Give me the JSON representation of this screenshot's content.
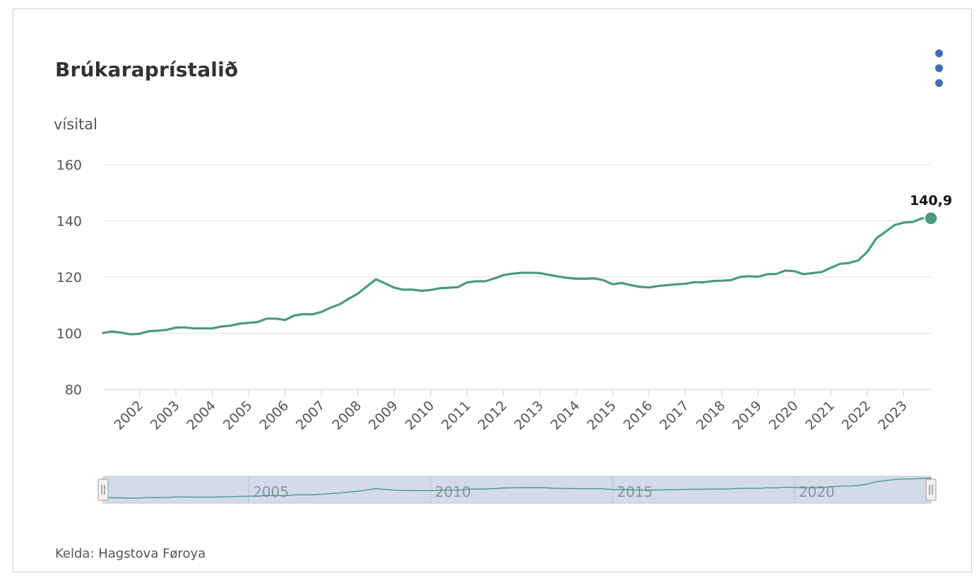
{
  "title": "Brúkaraprístalið",
  "source": "Kelda: Hagstova Føroya",
  "menu_icon": "kebab-menu-icon",
  "colors": {
    "line": "#4a9a82",
    "menu": "#3f6fae",
    "navigator_fill": "#d3dbea",
    "grid": "#e0e0e0"
  },
  "chart_data": {
    "type": "line",
    "ylabel": "vísital",
    "ylim": [
      80,
      160
    ],
    "yticks": [
      "80",
      "100",
      "120",
      "140",
      "160"
    ],
    "xlim": [
      2001.0,
      2023.75
    ],
    "xticks": [
      "2002",
      "2003",
      "2004",
      "2005",
      "2006",
      "2007",
      "2008",
      "2009",
      "2010",
      "2011",
      "2012",
      "2013",
      "2014",
      "2015",
      "2016",
      "2017",
      "2018",
      "2019",
      "2020",
      "2021",
      "2022",
      "2023"
    ],
    "last_value_label": "140,9",
    "grid": true,
    "navigator": {
      "labels": [
        "2005",
        "2010",
        "2015",
        "2020"
      ]
    },
    "series": [
      {
        "x": [
          2001.0,
          2001.25,
          2001.5,
          2001.75,
          2002.0,
          2002.25,
          2002.5,
          2002.75,
          2003.0,
          2003.25,
          2003.5,
          2003.75,
          2004.0,
          2004.25,
          2004.5,
          2004.75,
          2005.0,
          2005.25,
          2005.5,
          2005.75,
          2006.0,
          2006.25,
          2006.5,
          2006.75,
          2007.0,
          2007.25,
          2007.5,
          2007.75,
          2008.0,
          2008.25,
          2008.5,
          2008.75,
          2009.0,
          2009.25,
          2009.5,
          2009.75,
          2010.0,
          2010.25,
          2010.5,
          2010.75,
          2011.0,
          2011.25,
          2011.5,
          2011.75,
          2012.0,
          2012.25,
          2012.5,
          2012.75,
          2013.0,
          2013.25,
          2013.5,
          2013.75,
          2014.0,
          2014.25,
          2014.5,
          2014.75,
          2015.0,
          2015.25,
          2015.5,
          2015.75,
          2016.0,
          2016.25,
          2016.5,
          2016.75,
          2017.0,
          2017.25,
          2017.5,
          2017.75,
          2018.0,
          2018.25,
          2018.5,
          2018.75,
          2019.0,
          2019.25,
          2019.5,
          2019.75,
          2020.0,
          2020.25,
          2020.5,
          2020.75,
          2021.0,
          2021.25,
          2021.5,
          2021.75,
          2022.0,
          2022.25,
          2022.5,
          2022.75,
          2023.0,
          2023.25,
          2023.5,
          2023.75
        ],
        "values": [
          100.1,
          100.6,
          100.2,
          99.6,
          99.8,
          100.7,
          100.9,
          101.2,
          102.0,
          102.1,
          101.7,
          101.7,
          101.7,
          102.4,
          102.7,
          103.4,
          103.7,
          104.0,
          105.2,
          105.2,
          104.7,
          106.3,
          106.8,
          106.7,
          107.6,
          109.1,
          110.3,
          112.3,
          114.1,
          116.7,
          119.2,
          117.7,
          116.2,
          115.5,
          115.5,
          115.1,
          115.4,
          116.0,
          116.2,
          116.4,
          118.1,
          118.5,
          118.5,
          119.5,
          120.7,
          121.2,
          121.5,
          121.5,
          121.4,
          120.8,
          120.2,
          119.7,
          119.4,
          119.4,
          119.5,
          118.9,
          117.4,
          117.9,
          117.1,
          116.5,
          116.3,
          116.8,
          117.1,
          117.4,
          117.6,
          118.2,
          118.1,
          118.6,
          118.7,
          118.9,
          120.0,
          120.3,
          120.1,
          121.0,
          121.1,
          122.3,
          122.1,
          121.0,
          121.4,
          121.8,
          123.3,
          124.7,
          125.0,
          125.9,
          128.9,
          133.8,
          136.1,
          138.5,
          139.4,
          139.6,
          140.9,
          140.9
        ]
      }
    ]
  }
}
